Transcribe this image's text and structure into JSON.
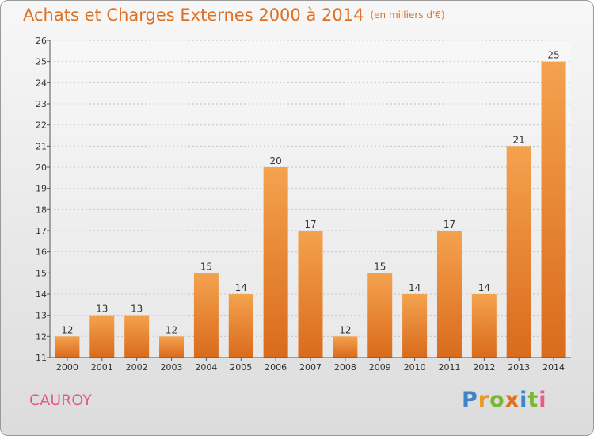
{
  "title": "Achats et Charges Externes 2000 à 2014",
  "unit": "(en milliers d'€)",
  "commune": "CAUROY",
  "logo": {
    "letters": [
      "P",
      "r",
      "o",
      "x",
      "i",
      "t",
      "i"
    ],
    "colors": [
      "#3a86c8",
      "#e89a2a",
      "#7ab833",
      "#e0701f",
      "#3a86c8",
      "#7ab833",
      "#e65a8a"
    ]
  },
  "colors": {
    "title": "#e0701f",
    "bar_light": "#f4a24e",
    "bar_dark": "#d96b1c",
    "commune": "#e65a8a"
  },
  "chart_data": {
    "type": "bar",
    "title": "Achats et Charges Externes 2000 à 2014",
    "categories": [
      "2000",
      "2001",
      "2002",
      "2003",
      "2004",
      "2005",
      "2006",
      "2007",
      "2008",
      "2009",
      "2010",
      "2011",
      "2012",
      "2013",
      "2014"
    ],
    "values": [
      12,
      13,
      13,
      12,
      15,
      14,
      20,
      17,
      12,
      15,
      14,
      17,
      14,
      21,
      25
    ],
    "ylim": [
      11,
      26
    ],
    "yticks": [
      11,
      12,
      13,
      14,
      15,
      16,
      17,
      18,
      19,
      20,
      21,
      22,
      23,
      24,
      25,
      26
    ],
    "grid": true,
    "xlabel": "",
    "ylabel": ""
  }
}
